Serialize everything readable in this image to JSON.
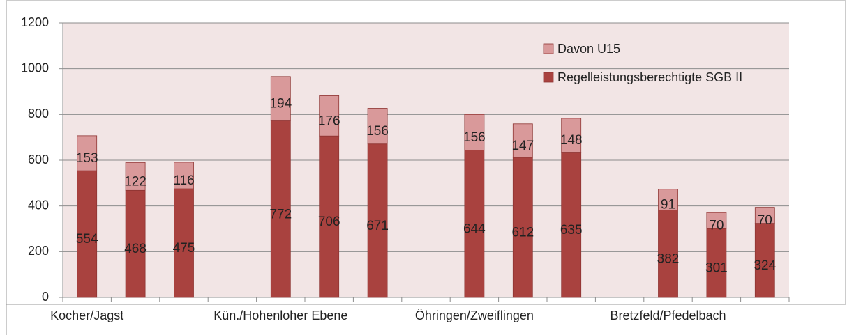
{
  "chart_data": {
    "type": "stacked-bar",
    "categories": [
      "Kocher/Jagst",
      null,
      null,
      null,
      "Kün./Hohenloher Ebene",
      null,
      null,
      null,
      "Öhringen/Zweiflingen",
      null,
      null,
      null,
      "Bretzfeld/Pfedelbach",
      null,
      null
    ],
    "series": [
      {
        "name": "Regelleistungsberechtigte SGB II",
        "color": "#a9423f",
        "values": [
          554,
          468,
          475,
          null,
          772,
          706,
          671,
          null,
          644,
          612,
          635,
          null,
          382,
          301,
          324
        ]
      },
      {
        "name": "Davon U15",
        "color": "#d9999a",
        "values": [
          153,
          122,
          116,
          null,
          194,
          176,
          156,
          null,
          156,
          147,
          148,
          null,
          91,
          70,
          70
        ]
      }
    ],
    "ylim": [
      0,
      1200
    ],
    "yticks": [
      0,
      200,
      400,
      600,
      800,
      1000,
      1200
    ],
    "grid": true,
    "legend": "top-right"
  }
}
